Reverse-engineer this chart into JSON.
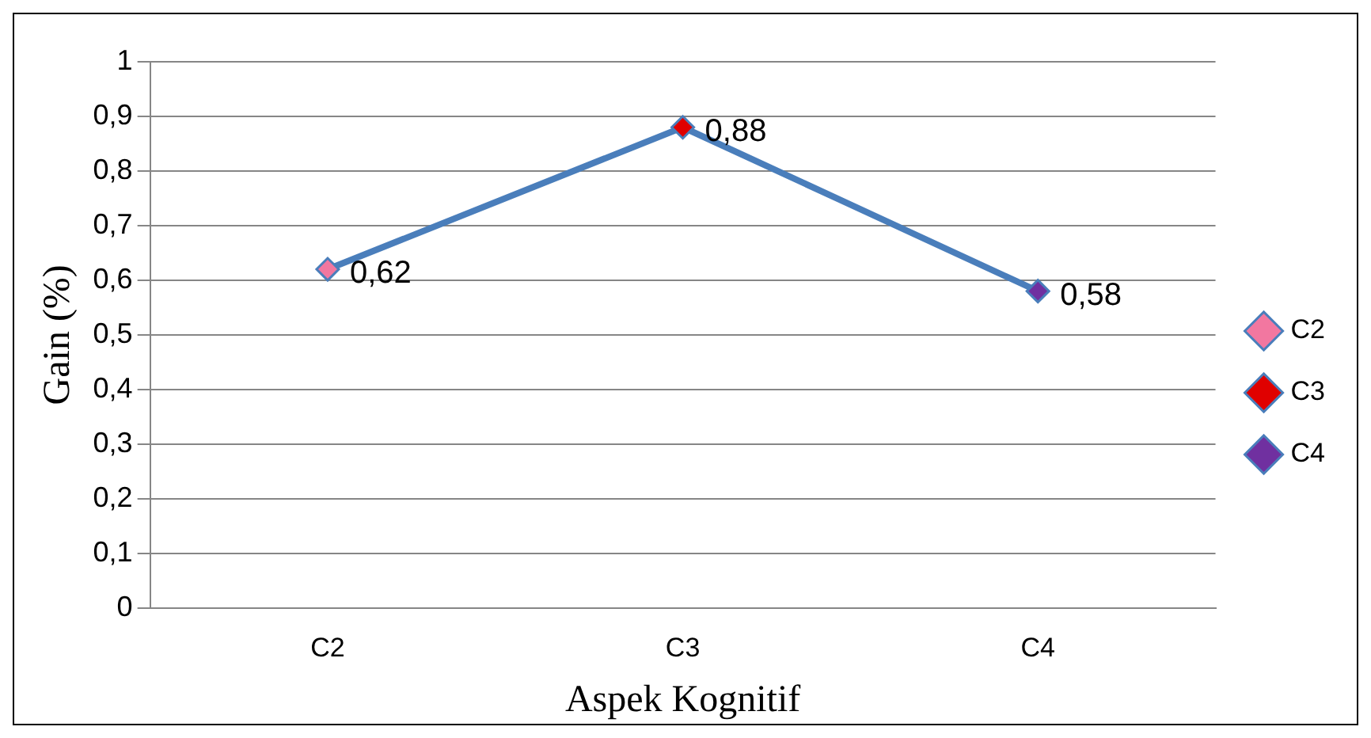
{
  "chart_data": {
    "type": "line",
    "xlabel": "Aspek Kognitif",
    "ylabel": "Gain (%)",
    "categories": [
      "C2",
      "C3",
      "C4"
    ],
    "series": [
      {
        "color": "#4a7ebb",
        "values": [
          0.62,
          0.88,
          0.58
        ],
        "marker": "none"
      },
      {
        "type": "scatter",
        "name": "C2",
        "color": "#f277a0",
        "x": [
          "C2"
        ],
        "values": [
          0.62
        ],
        "value_labels": [
          "0,62"
        ]
      },
      {
        "type": "scatter",
        "name": "C3",
        "color": "#e00000",
        "x": [
          "C3"
        ],
        "values": [
          0.88
        ],
        "value_labels": [
          "0,88"
        ]
      },
      {
        "type": "scatter",
        "name": "C4",
        "color": "#7030a0",
        "x": [
          "C4"
        ],
        "values": [
          0.58
        ],
        "value_labels": [
          "0,58"
        ]
      }
    ],
    "ylim": [
      0,
      1
    ],
    "yticks": [
      {
        "value": 0,
        "label": "0"
      },
      {
        "value": 0.1,
        "label": "0,1"
      },
      {
        "value": 0.2,
        "label": "0,2"
      },
      {
        "value": 0.3,
        "label": "0,3"
      },
      {
        "value": 0.4,
        "label": "0,4"
      },
      {
        "value": 0.5,
        "label": "0,5"
      },
      {
        "value": 0.6,
        "label": "0,6"
      },
      {
        "value": 0.7,
        "label": "0,7"
      },
      {
        "value": 0.8,
        "label": "0,8"
      },
      {
        "value": 0.9,
        "label": "0,9"
      },
      {
        "value": 1,
        "label": "1"
      }
    ],
    "grid": "y",
    "legend": "right",
    "marker": "diamond",
    "line_style": "solid"
  }
}
